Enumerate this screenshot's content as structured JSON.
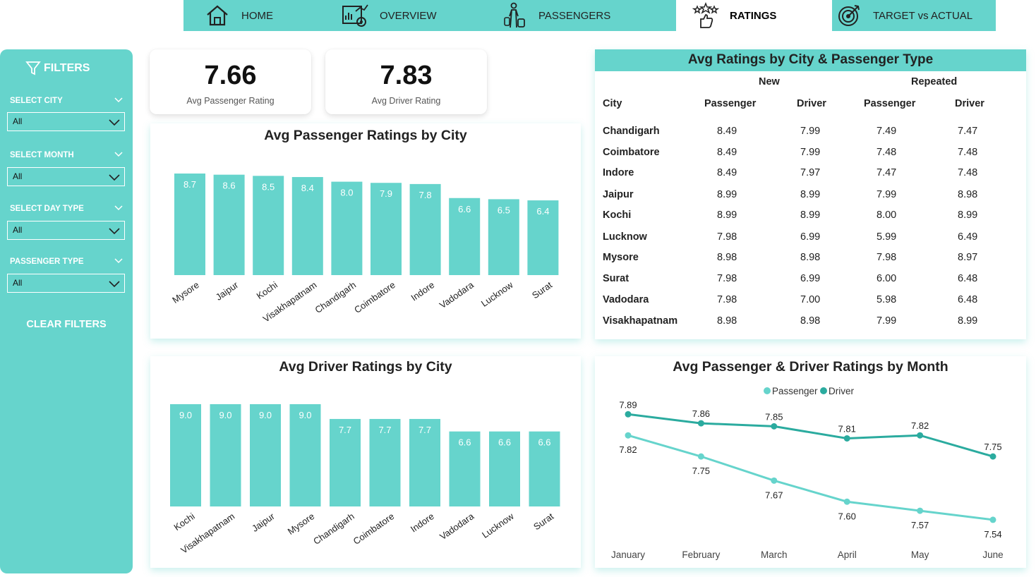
{
  "nav": {
    "items": [
      {
        "label": "HOME",
        "icon": "home-icon"
      },
      {
        "label": "OVERVIEW",
        "icon": "overview-icon"
      },
      {
        "label": "PASSENGERS",
        "icon": "passengers-icon"
      },
      {
        "label": "RATINGS",
        "icon": "ratings-icon"
      },
      {
        "label": "TARGET vs ACTUAL",
        "icon": "target-icon"
      }
    ],
    "active": "RATINGS"
  },
  "filters": {
    "title": "FILTERS",
    "city": {
      "label": "SELECT CITY",
      "value": "All"
    },
    "month": {
      "label": "SELECT MONTH",
      "value": "All"
    },
    "day_type": {
      "label": "SELECT DAY TYPE",
      "value": "All"
    },
    "passenger_type": {
      "label": "PASSENGER TYPE",
      "value": "All"
    },
    "clear_label": "CLEAR FILTERS"
  },
  "kpis": {
    "passenger": {
      "value": "7.66",
      "label": "Avg Passenger Rating"
    },
    "driver": {
      "value": "7.83",
      "label": "Avg Driver Rating"
    }
  },
  "table": {
    "title": "Avg Ratings by City & Passenger Type",
    "group_new": "New",
    "group_repeated": "Repeated",
    "col_city": "City",
    "col_passenger": "Passenger",
    "col_driver": "Driver",
    "rows": [
      [
        "Chandigarh",
        "8.49",
        "7.99",
        "7.49",
        "7.47"
      ],
      [
        "Coimbatore",
        "8.49",
        "7.99",
        "7.48",
        "7.48"
      ],
      [
        "Indore",
        "8.49",
        "7.97",
        "7.47",
        "7.48"
      ],
      [
        "Jaipur",
        "8.99",
        "8.99",
        "7.99",
        "8.98"
      ],
      [
        "Kochi",
        "8.99",
        "8.99",
        "8.00",
        "8.99"
      ],
      [
        "Lucknow",
        "7.98",
        "6.99",
        "5.99",
        "6.49"
      ],
      [
        "Mysore",
        "8.98",
        "8.98",
        "7.98",
        "8.97"
      ],
      [
        "Surat",
        "7.98",
        "6.99",
        "6.00",
        "6.48"
      ],
      [
        "Vadodara",
        "7.98",
        "7.00",
        "5.98",
        "6.48"
      ],
      [
        "Visakhapatnam",
        "8.98",
        "8.98",
        "7.99",
        "8.99"
      ]
    ]
  },
  "colors": {
    "accent": "#66d4cc",
    "driver_line": "#2bab9f",
    "passenger_line": "#66d4cc"
  },
  "chart_data": [
    {
      "type": "bar",
      "title": "Avg Passenger Ratings by City",
      "categories": [
        "Mysore",
        "Jaipur",
        "Kochi",
        "Visakhapatnam",
        "Chandigarh",
        "Coimbatore",
        "Indore",
        "Vadodara",
        "Lucknow",
        "Surat"
      ],
      "values": [
        8.7,
        8.6,
        8.5,
        8.4,
        8.0,
        7.9,
        7.8,
        6.6,
        6.5,
        6.4
      ],
      "ylim": [
        0,
        8.7
      ],
      "grid": false
    },
    {
      "type": "bar",
      "title": "Avg Driver Ratings by City",
      "categories": [
        "Kochi",
        "Visakhapatnam",
        "Jaipur",
        "Mysore",
        "Chandigarh",
        "Coimbatore",
        "Indore",
        "Vadodara",
        "Lucknow",
        "Surat"
      ],
      "values": [
        9.0,
        9.0,
        9.0,
        9.0,
        7.7,
        7.7,
        7.7,
        6.6,
        6.6,
        6.6
      ],
      "ylim": [
        0,
        9.0
      ],
      "grid": false
    },
    {
      "type": "line",
      "title": "Avg Passenger & Driver Ratings by Month",
      "categories": [
        "January",
        "February",
        "March",
        "April",
        "May",
        "June"
      ],
      "series": [
        {
          "name": "Passenger",
          "values": [
            7.82,
            7.75,
            7.67,
            7.6,
            7.57,
            7.54
          ]
        },
        {
          "name": "Driver",
          "values": [
            7.89,
            7.86,
            7.85,
            7.81,
            7.82,
            7.75
          ]
        }
      ],
      "legend": "top-center",
      "grid": false
    }
  ]
}
